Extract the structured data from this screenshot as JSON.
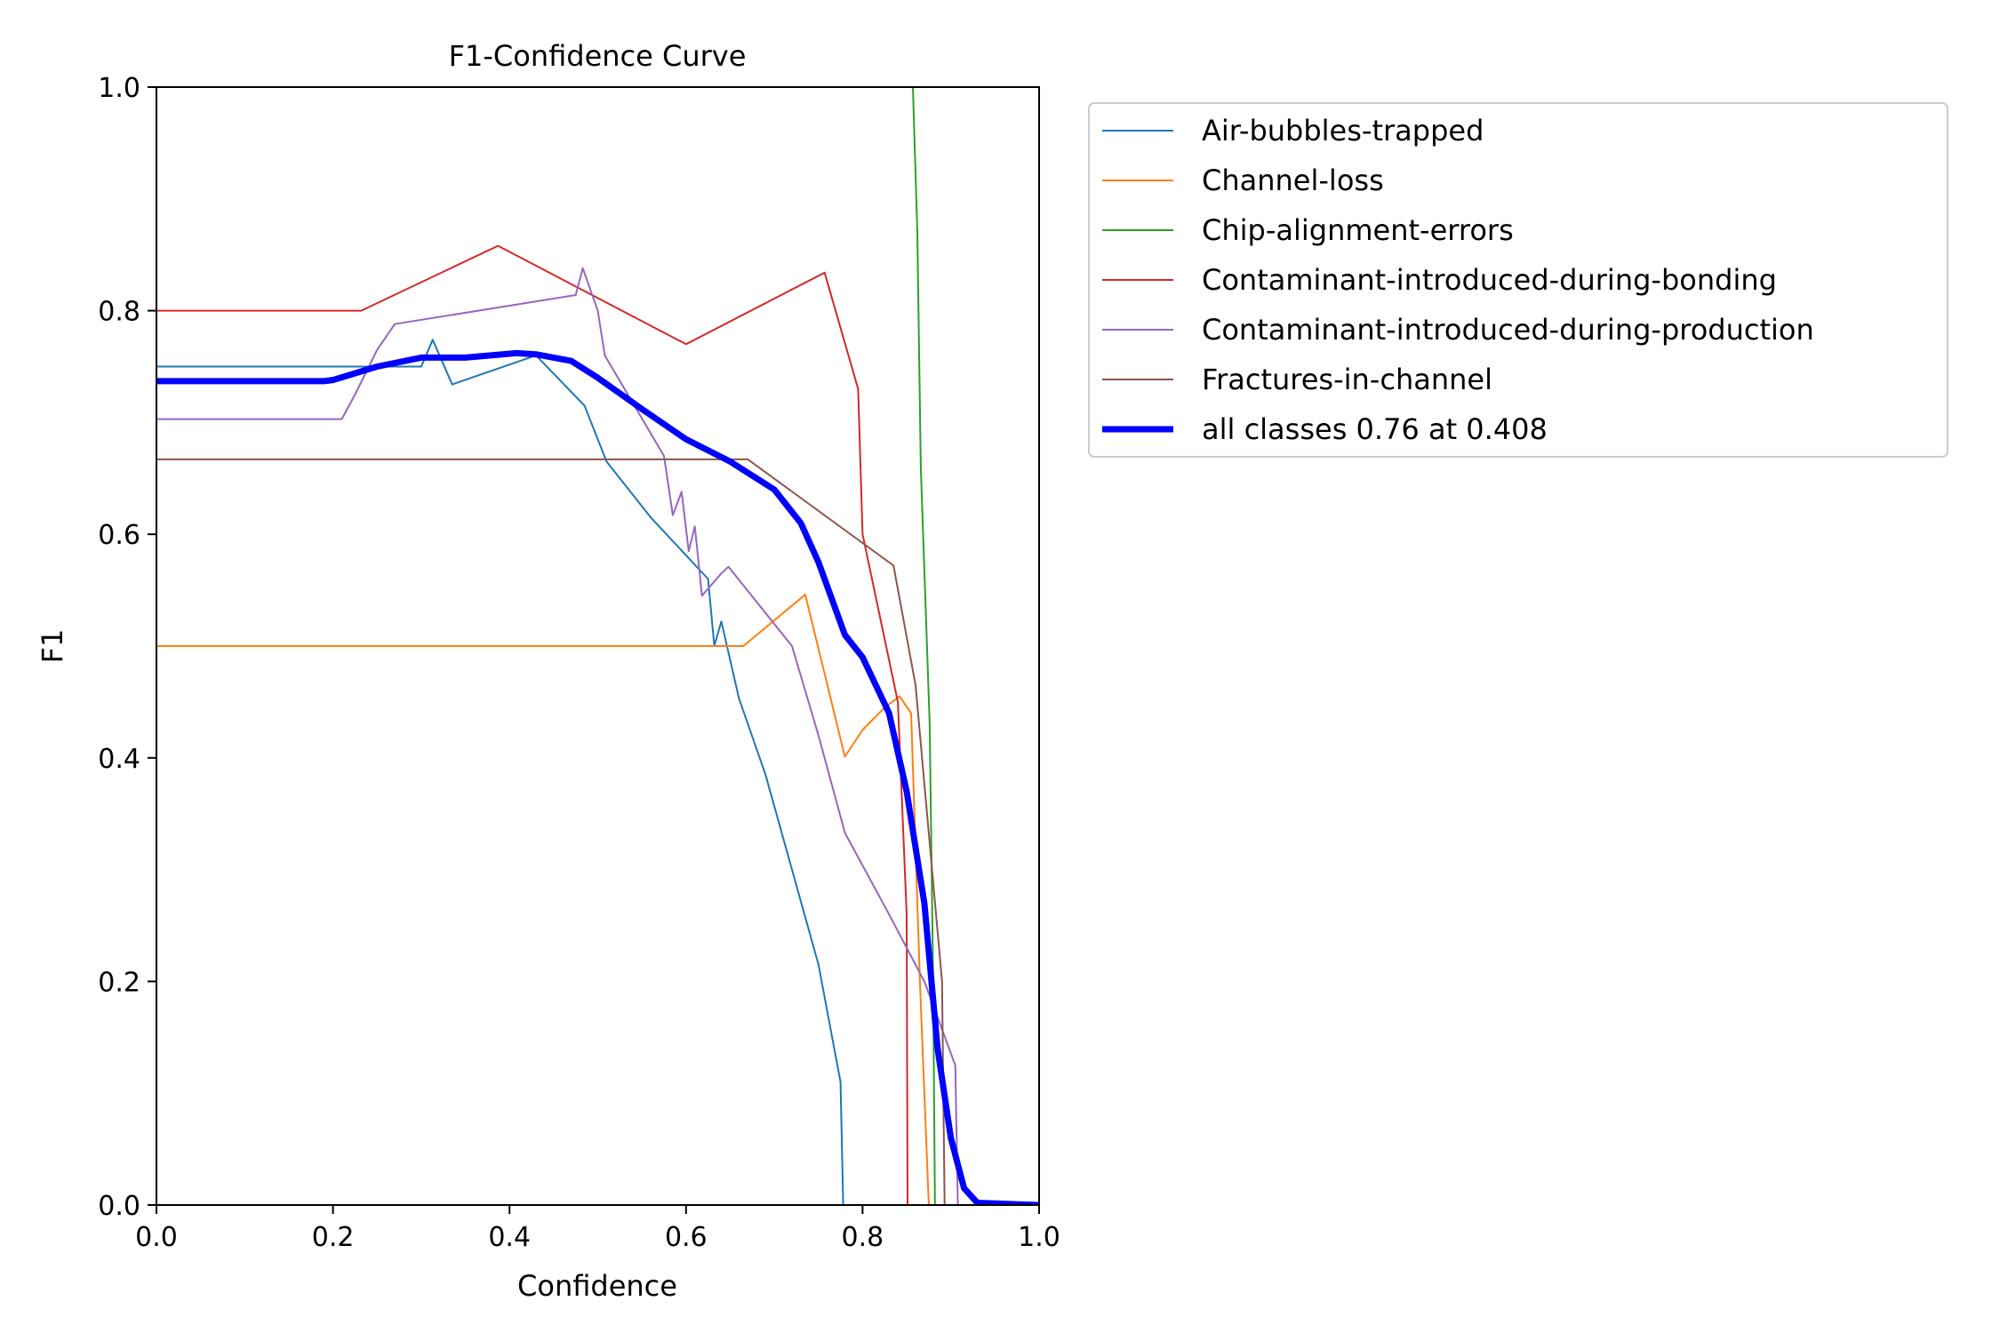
{
  "chart_data": {
    "type": "line",
    "title": "F1-Confidence Curve",
    "xlabel": "Confidence",
    "ylabel": "F1",
    "xlim": [
      0,
      1
    ],
    "ylim": [
      0,
      1
    ],
    "xticks": [
      "0.0",
      "0.2",
      "0.4",
      "0.6",
      "0.8",
      "1.0"
    ],
    "yticks": [
      "0.0",
      "0.2",
      "0.4",
      "0.6",
      "0.8",
      "1.0"
    ],
    "grid": false,
    "legend_position": "upper right, outside plot",
    "series": [
      {
        "name": "Air-bubbles-trapped",
        "color": "#1f77b4",
        "width": 2,
        "points": [
          [
            0,
            0.75
          ],
          [
            0.28,
            0.75
          ],
          [
            0.29,
            0.75
          ],
          [
            0.3,
            0.75
          ],
          [
            0.313,
            0.774
          ],
          [
            0.335,
            0.734
          ],
          [
            0.43,
            0.76
          ],
          [
            0.485,
            0.715
          ],
          [
            0.51,
            0.665
          ],
          [
            0.56,
            0.615
          ],
          [
            0.625,
            0.56
          ],
          [
            0.632,
            0.5
          ],
          [
            0.64,
            0.522
          ],
          [
            0.66,
            0.453
          ],
          [
            0.69,
            0.385
          ],
          [
            0.72,
            0.3
          ],
          [
            0.75,
            0.215
          ],
          [
            0.775,
            0.11
          ],
          [
            0.778,
            0
          ],
          [
            1,
            0
          ]
        ]
      },
      {
        "name": "Channel-loss",
        "color": "#ff7f0e",
        "width": 2,
        "points": [
          [
            0,
            0.5
          ],
          [
            0.665,
            0.5
          ],
          [
            0.735,
            0.546
          ],
          [
            0.78,
            0.401
          ],
          [
            0.8,
            0.425
          ],
          [
            0.825,
            0.445
          ],
          [
            0.842,
            0.455
          ],
          [
            0.855,
            0.44
          ],
          [
            0.865,
            0.2
          ],
          [
            0.875,
            0
          ],
          [
            1,
            0
          ]
        ]
      },
      {
        "name": "Chip-alignment-errors",
        "color": "#2ca02c",
        "width": 2,
        "points": [
          [
            0.857,
            1.0
          ],
          [
            0.862,
            0.87
          ],
          [
            0.866,
            0.66
          ],
          [
            0.876,
            0.43
          ],
          [
            0.88,
            0.2
          ],
          [
            0.882,
            0
          ],
          [
            1,
            0
          ]
        ]
      },
      {
        "name": "Contaminant-introduced-during-bonding",
        "color": "#d62728",
        "width": 2,
        "points": [
          [
            0,
            0.8
          ],
          [
            0.232,
            0.8
          ],
          [
            0.387,
            0.858
          ],
          [
            0.6,
            0.77
          ],
          [
            0.757,
            0.834
          ],
          [
            0.795,
            0.73
          ],
          [
            0.8,
            0.6
          ],
          [
            0.84,
            0.45
          ],
          [
            0.85,
            0.26
          ],
          [
            0.851,
            0
          ],
          [
            1,
            0
          ]
        ]
      },
      {
        "name": "Contaminant-introduced-during-production",
        "color": "#9467bd",
        "width": 2,
        "points": [
          [
            0,
            0.703
          ],
          [
            0.21,
            0.703
          ],
          [
            0.225,
            0.725
          ],
          [
            0.25,
            0.765
          ],
          [
            0.27,
            0.788
          ],
          [
            0.475,
            0.814
          ],
          [
            0.483,
            0.838
          ],
          [
            0.5,
            0.8
          ],
          [
            0.508,
            0.76
          ],
          [
            0.575,
            0.67
          ],
          [
            0.585,
            0.617
          ],
          [
            0.595,
            0.638
          ],
          [
            0.603,
            0.585
          ],
          [
            0.61,
            0.607
          ],
          [
            0.618,
            0.545
          ],
          [
            0.64,
            0.565
          ],
          [
            0.648,
            0.571
          ],
          [
            0.72,
            0.5
          ],
          [
            0.75,
            0.42
          ],
          [
            0.78,
            0.333
          ],
          [
            0.83,
            0.26
          ],
          [
            0.87,
            0.2
          ],
          [
            0.905,
            0.125
          ],
          [
            0.908,
            0
          ],
          [
            1,
            0
          ]
        ]
      },
      {
        "name": "Fractures-in-channel",
        "color": "#8c564b",
        "width": 2,
        "points": [
          [
            0,
            0.667
          ],
          [
            0.67,
            0.667
          ],
          [
            0.835,
            0.572
          ],
          [
            0.86,
            0.465
          ],
          [
            0.89,
            0.2
          ],
          [
            0.893,
            0
          ],
          [
            1,
            0
          ]
        ]
      },
      {
        "name": "all classes 0.76 at 0.408",
        "color": "#0000ff",
        "width": 7,
        "points": [
          [
            0,
            0.737
          ],
          [
            0.19,
            0.737
          ],
          [
            0.2,
            0.738
          ],
          [
            0.25,
            0.75
          ],
          [
            0.3,
            0.758
          ],
          [
            0.35,
            0.758
          ],
          [
            0.408,
            0.762
          ],
          [
            0.43,
            0.761
          ],
          [
            0.47,
            0.755
          ],
          [
            0.5,
            0.74
          ],
          [
            0.55,
            0.712
          ],
          [
            0.6,
            0.685
          ],
          [
            0.65,
            0.665
          ],
          [
            0.7,
            0.64
          ],
          [
            0.73,
            0.61
          ],
          [
            0.75,
            0.575
          ],
          [
            0.78,
            0.51
          ],
          [
            0.8,
            0.49
          ],
          [
            0.83,
            0.44
          ],
          [
            0.85,
            0.37
          ],
          [
            0.87,
            0.27
          ],
          [
            0.885,
            0.14
          ],
          [
            0.9,
            0.06
          ],
          [
            0.915,
            0.015
          ],
          [
            0.93,
            0.002
          ],
          [
            1,
            0
          ]
        ]
      }
    ]
  }
}
